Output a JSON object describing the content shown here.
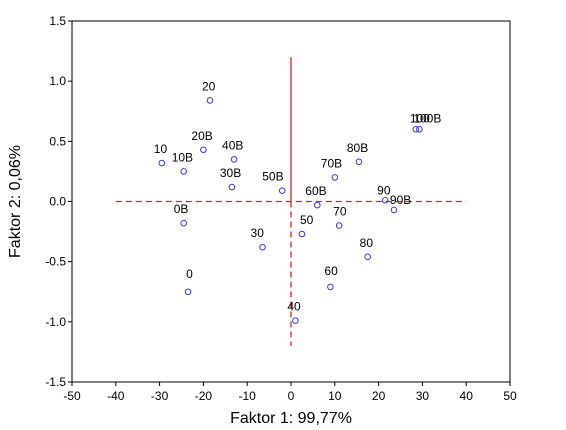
{
  "chart_data": {
    "type": "scatter",
    "title": "",
    "xlabel": "Faktor 1: 99,77%",
    "ylabel": "Faktor 2: 0,06%",
    "xlim": [
      -50,
      50
    ],
    "ylim": [
      -1.5,
      1.5
    ],
    "xticks": [
      "-50",
      "-40",
      "-30",
      "-20",
      "-10",
      "0",
      "10",
      "20",
      "30",
      "40",
      "50"
    ],
    "yticks": [
      "1.5",
      "1.0",
      "0.5",
      "0.0",
      "-0.5",
      "-1.0",
      "-1.5"
    ],
    "grid": false,
    "points": [
      {
        "label": "0",
        "x": -23.5,
        "y": -0.75
      },
      {
        "label": "0B",
        "x": -24.5,
        "y": -0.18
      },
      {
        "label": "10",
        "x": -29.5,
        "y": 0.32
      },
      {
        "label": "10B",
        "x": -24.5,
        "y": 0.25
      },
      {
        "label": "20",
        "x": -18.5,
        "y": 0.84
      },
      {
        "label": "20B",
        "x": -20.0,
        "y": 0.43
      },
      {
        "label": "30",
        "x": -6.5,
        "y": -0.38
      },
      {
        "label": "30B",
        "x": -13.5,
        "y": 0.12
      },
      {
        "label": "40",
        "x": 1.0,
        "y": -0.99
      },
      {
        "label": "40B",
        "x": -13.0,
        "y": 0.35
      },
      {
        "label": "50",
        "x": 2.5,
        "y": -0.27
      },
      {
        "label": "50B",
        "x": -2.0,
        "y": 0.09
      },
      {
        "label": "60",
        "x": 9.0,
        "y": -0.71
      },
      {
        "label": "60B",
        "x": 6.0,
        "y": -0.03
      },
      {
        "label": "70",
        "x": 11.0,
        "y": -0.2
      },
      {
        "label": "70B",
        "x": 10.0,
        "y": 0.2
      },
      {
        "label": "80",
        "x": 17.5,
        "y": -0.46
      },
      {
        "label": "80B",
        "x": 15.5,
        "y": 0.33
      },
      {
        "label": "90",
        "x": 21.5,
        "y": 0.01
      },
      {
        "label": "90B",
        "x": 23.5,
        "y": -0.07
      },
      {
        "label": "100",
        "x": 28.5,
        "y": 0.6
      },
      {
        "label": "100B",
        "x": 29.3,
        "y": 0.6
      }
    ],
    "reference_lines": {
      "vertical_solid": {
        "x": 0,
        "y_from": -1.2,
        "y_to": 1.2
      },
      "horizontal_dashed": {
        "y": 0,
        "x_from": -40,
        "x_to": 40
      },
      "vertical_dashed": {
        "x": 0,
        "y_from": -1.2,
        "y_to": 0
      }
    },
    "colors": {
      "marker": "#3a3ad0",
      "reference": "#e02020",
      "axis": "#000000"
    }
  }
}
